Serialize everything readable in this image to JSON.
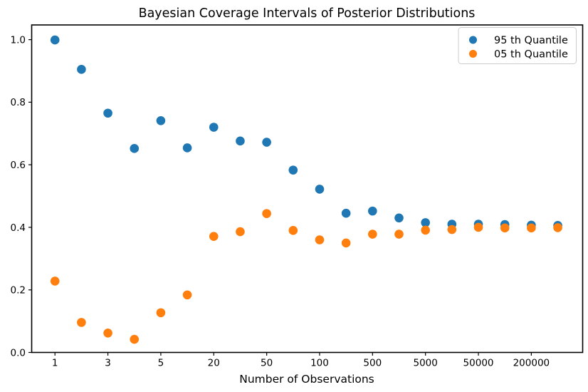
{
  "title": "Bayesian Coverage Intervals of Posterior Distributions",
  "chart_data": {
    "type": "scatter",
    "title": "Bayesian Coverage Intervals of Posterior Distributions",
    "xlabel": "Number of Observations",
    "ylabel": "",
    "grid": false,
    "legend": {
      "position": "upper-right"
    },
    "x_axis": {
      "scale": "categorical-index",
      "n_points": 20,
      "tick_indices": [
        0,
        2,
        4,
        6,
        8,
        10,
        12,
        14,
        16,
        18
      ],
      "tick_labels": [
        "1",
        "3",
        "5",
        "20",
        "50",
        "100",
        "500",
        "5000",
        "50000",
        "200000"
      ],
      "xlim_index": [
        -0.88,
        19.94
      ]
    },
    "y_axis": {
      "tick_labels": [
        "0.0",
        "0.2",
        "0.4",
        "0.6",
        "0.8",
        "1.0"
      ],
      "tick_values": [
        0,
        0.2,
        0.4,
        0.6,
        0.8,
        1.0
      ],
      "ylim": [
        0,
        1.047
      ]
    },
    "series": [
      {
        "name": "95 th Quantile",
        "color": "#1f77b4",
        "values": [
          0.999,
          0.905,
          0.765,
          0.652,
          0.741,
          0.654,
          0.72,
          0.676,
          0.672,
          0.583,
          0.522,
          0.445,
          0.452,
          0.43,
          0.415,
          0.41,
          0.41,
          0.409,
          0.407,
          0.406
        ]
      },
      {
        "name": "05 th Quantile",
        "color": "#ff7f0e",
        "values": [
          0.228,
          0.096,
          0.062,
          0.042,
          0.127,
          0.184,
          0.371,
          0.386,
          0.444,
          0.39,
          0.36,
          0.35,
          0.378,
          0.378,
          0.391,
          0.393,
          0.4,
          0.398,
          0.398,
          0.399
        ]
      }
    ]
  }
}
